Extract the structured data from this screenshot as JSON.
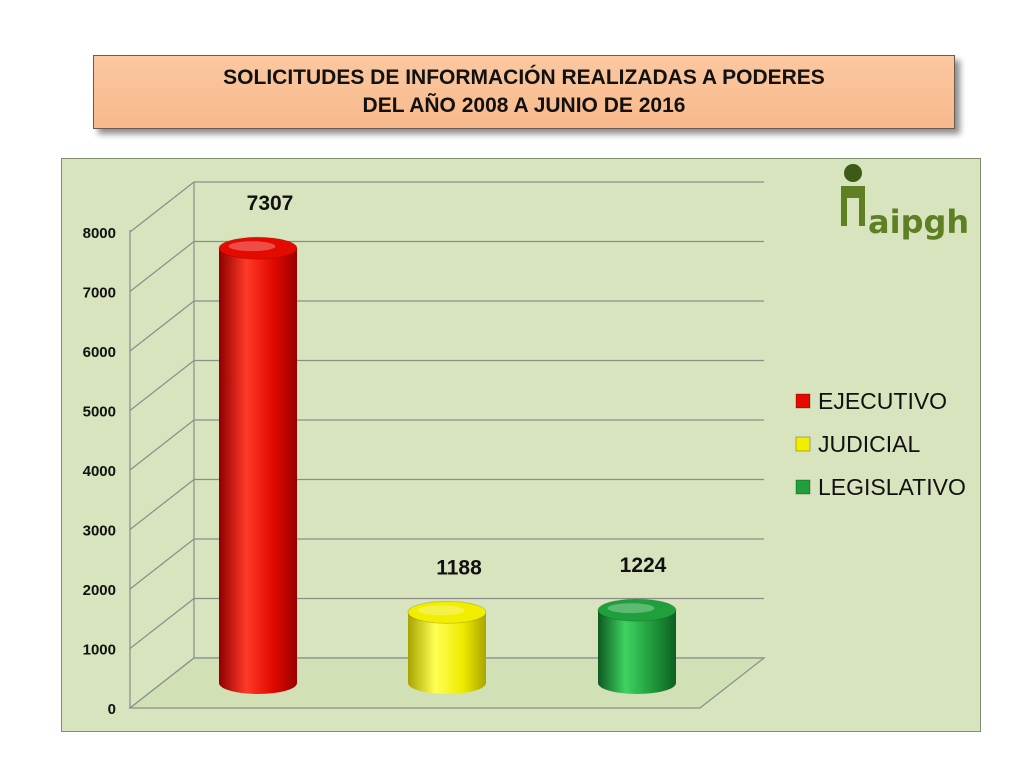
{
  "title": {
    "line1": "SOLICITUDES DE INFORMACIÓN  REALIZADAS A PODERES",
    "line2": "DEL AÑO 2008 A JUNIO DE 2016"
  },
  "logo": {
    "text": "aipgh"
  },
  "colors": {
    "background": "#d7e4bd",
    "title_box": "#fbc8a0"
  },
  "chart_data": {
    "type": "bar",
    "style": "3d-cylinder",
    "categories": [
      "EJECUTIVO",
      "JUDICIAL",
      "LEGISLATIVO"
    ],
    "values": [
      7307,
      1188,
      1224
    ],
    "data_labels": [
      "7307",
      "1188",
      "1224"
    ],
    "colors": [
      "#e50a00",
      "#f2ee00",
      "#1fa03c"
    ],
    "ylim": [
      0,
      8000
    ],
    "yticks": [
      0,
      1000,
      2000,
      3000,
      4000,
      5000,
      6000,
      7000,
      8000
    ],
    "grid": true,
    "legend": {
      "position": "right",
      "items": [
        "EJECUTIVO",
        "JUDICIAL",
        "LEGISLATIVO"
      ]
    }
  }
}
